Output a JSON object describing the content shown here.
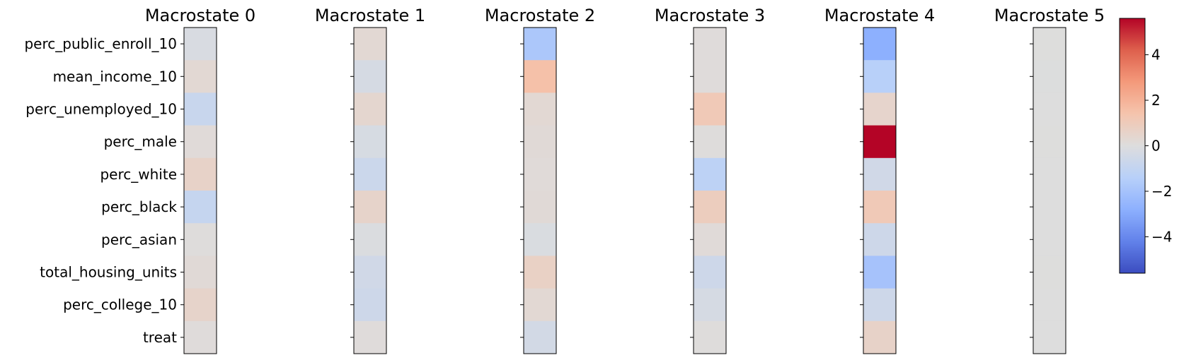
{
  "chart_data": {
    "type": "heatmap",
    "row_labels": [
      "perc_public_enroll_10",
      "mean_income_10",
      "perc_unemployed_10",
      "perc_male",
      "perc_white",
      "perc_black",
      "perc_asian",
      "total_housing_units",
      "perc_college_10",
      "treat"
    ],
    "panels": [
      {
        "title": "Macrostate 0",
        "values": [
          -0.2,
          0.3,
          -0.8,
          0.15,
          0.6,
          -0.9,
          0.05,
          0.2,
          0.55,
          0.1
        ]
      },
      {
        "title": "Macrostate 1",
        "values": [
          0.3,
          -0.3,
          0.4,
          -0.25,
          -0.7,
          0.55,
          -0.1,
          -0.5,
          -0.6,
          0.1
        ]
      },
      {
        "title": "Macrostate 2",
        "values": [
          -1.8,
          1.5,
          0.3,
          0.2,
          0.15,
          0.2,
          -0.15,
          0.7,
          0.3,
          -0.4
        ]
      },
      {
        "title": "Macrostate 3",
        "values": [
          0.1,
          0.1,
          1.1,
          0.05,
          -1.2,
          0.9,
          0.15,
          -0.6,
          -0.3,
          0.05
        ]
      },
      {
        "title": "Macrostate 4",
        "values": [
          -2.8,
          -1.4,
          0.5,
          5.6,
          -0.5,
          1.1,
          -0.6,
          -2.0,
          -0.6,
          0.6
        ]
      },
      {
        "title": "Macrostate 5",
        "values": [
          0.02,
          -0.02,
          0.0,
          0.02,
          0.0,
          0.01,
          0.0,
          0.02,
          -0.01,
          0.01
        ]
      }
    ],
    "colormap": "coolwarm",
    "colorbar": {
      "vmin": -5.6,
      "vmax": 5.6,
      "ticks": [
        -4,
        -2,
        0,
        2,
        4
      ],
      "tick_labels": [
        "−4",
        "−2",
        "0",
        "2",
        "4"
      ]
    }
  }
}
